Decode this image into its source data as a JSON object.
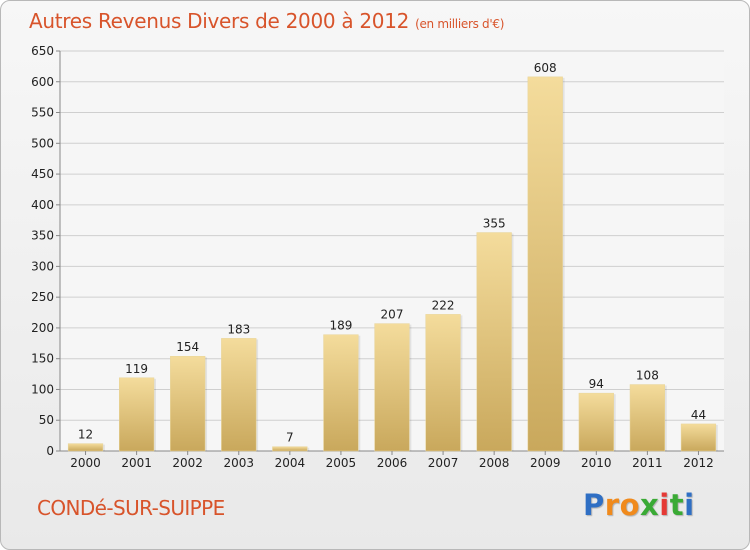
{
  "title": "Autres Revenus Divers de 2000 à 2012",
  "subtitle": "(en milliers d'€)",
  "commune": "CONDé-SUR-SUIPPE",
  "logo": {
    "letters": [
      "P",
      "r",
      "o",
      "x",
      "i",
      "t",
      "i"
    ],
    "colors": [
      "#2f6fc4",
      "#f08a1c",
      "#f08a1c",
      "#3aaa35",
      "#e53935",
      "#3aaa35",
      "#2f6fc4"
    ]
  },
  "colors": {
    "bar_light": "#f4dc9c",
    "bar_dark": "#c9a85c",
    "grid": "#cfcfcf",
    "axis_text": "#222222",
    "accent": "#d8542b"
  },
  "chart_data": {
    "type": "bar",
    "categories": [
      "2000",
      "2001",
      "2002",
      "2003",
      "2004",
      "2005",
      "2006",
      "2007",
      "2008",
      "2009",
      "2010",
      "2011",
      "2012"
    ],
    "values": [
      12,
      119,
      154,
      183,
      7,
      189,
      207,
      222,
      355,
      608,
      94,
      108,
      44
    ],
    "yticks": [
      0,
      50,
      100,
      150,
      200,
      250,
      300,
      350,
      400,
      450,
      500,
      550,
      600,
      650
    ],
    "ylim": [
      0,
      650
    ],
    "grid": true,
    "data_labels": true
  }
}
